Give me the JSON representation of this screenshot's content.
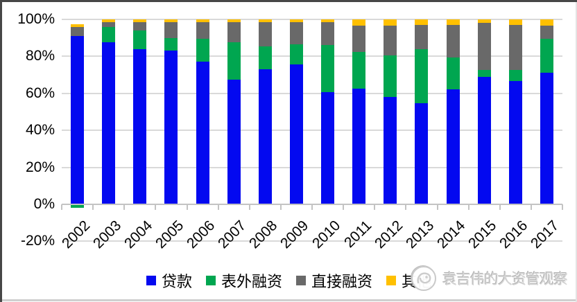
{
  "chart_data": {
    "type": "bar",
    "stacked": true,
    "unit": "percent",
    "title": "",
    "xlabel": "",
    "ylabel": "",
    "categories": [
      "2002",
      "2003",
      "2004",
      "2005",
      "2006",
      "2007",
      "2008",
      "2009",
      "2010",
      "2011",
      "2012",
      "2013",
      "2014",
      "2015",
      "2016",
      "2017"
    ],
    "series": [
      {
        "name": "贷款",
        "color": "#0309f0",
        "values": [
          91,
          87.5,
          84,
          83,
          77,
          67.5,
          73,
          75.5,
          60.5,
          62.5,
          58,
          54.5,
          62,
          69,
          66.5,
          71
        ]
      },
      {
        "name": "表外融资",
        "color": "#00a650",
        "values": [
          -2,
          8.5,
          10,
          7,
          12.5,
          20,
          12.5,
          11,
          25.5,
          20,
          22.5,
          29.5,
          17.5,
          3.5,
          6,
          18.5
        ]
      },
      {
        "name": "直接融资",
        "color": "#696969",
        "values": [
          5,
          2.5,
          4.5,
          8.5,
          9,
          11,
          13,
          12,
          12.5,
          14,
          16,
          13,
          17.5,
          25.5,
          24.5,
          7
        ]
      },
      {
        "name": "其他",
        "color": "#ffc000",
        "values": [
          1.5,
          1.5,
          1.5,
          1.5,
          1.5,
          1.5,
          1.5,
          1.5,
          1.5,
          3.5,
          3.5,
          3,
          3,
          2,
          3,
          3.5
        ]
      }
    ],
    "ylim": [
      -20,
      100
    ],
    "yticks": [
      100,
      80,
      60,
      40,
      20,
      0,
      -20
    ],
    "ytick_labels": [
      "100%",
      "80%",
      "60%",
      "40%",
      "20%",
      "0%",
      "-20%"
    ],
    "grid": "horizontal",
    "legend_position": "bottom"
  },
  "watermark": {
    "text": "袁吉伟的大资管观察"
  }
}
